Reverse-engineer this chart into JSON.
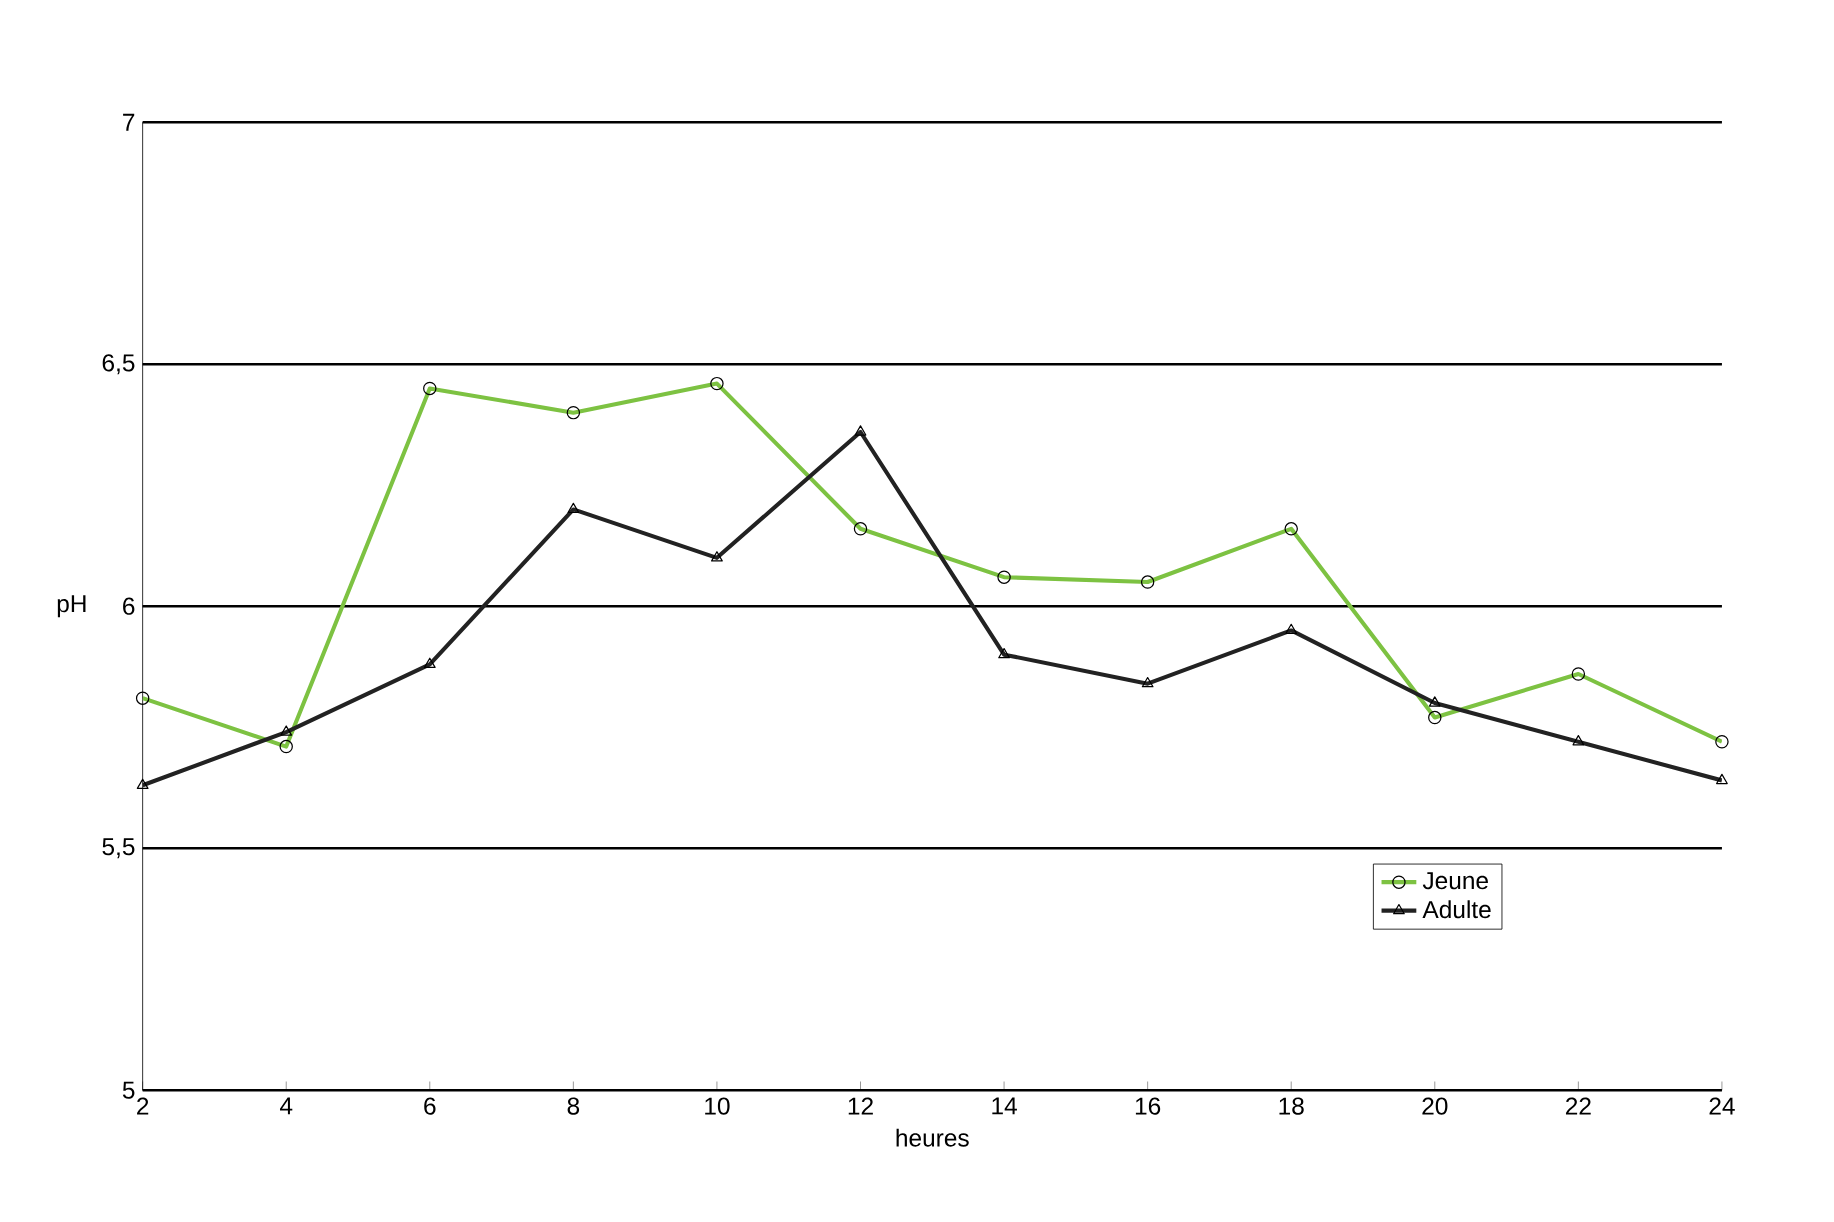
{
  "chart_data": {
    "type": "line",
    "xlabel": "heures",
    "ylabel": "pH",
    "x": [
      2,
      4,
      6,
      8,
      10,
      12,
      14,
      16,
      18,
      20,
      22,
      24
    ],
    "series": [
      {
        "name": "Jeune",
        "color": "#7dc242",
        "marker": "circle",
        "values": [
          5.81,
          5.71,
          6.45,
          6.4,
          6.46,
          6.16,
          6.06,
          6.05,
          6.16,
          5.77,
          5.86,
          5.72
        ]
      },
      {
        "name": "Adulte",
        "color": "#222222",
        "marker": "triangle",
        "values": [
          5.63,
          5.74,
          5.88,
          6.2,
          6.1,
          6.36,
          5.9,
          5.84,
          5.95,
          5.8,
          5.72,
          5.64
        ]
      }
    ],
    "xlim": [
      2,
      24
    ],
    "xticks": [
      2,
      4,
      6,
      8,
      10,
      12,
      14,
      16,
      18,
      20,
      22,
      24
    ],
    "ylim": [
      5,
      7
    ],
    "yticks": [
      5,
      {
        "value": 5.5,
        "label": "5,5"
      },
      6,
      {
        "value": 6.5,
        "label": "6,5"
      },
      7
    ],
    "grid": "y",
    "legend": "bottom right"
  }
}
